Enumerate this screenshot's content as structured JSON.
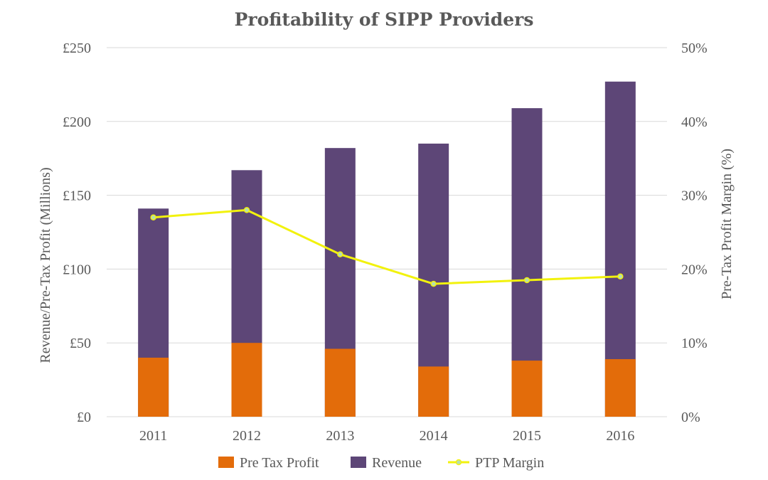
{
  "chart_data": {
    "type": "bar",
    "stacking": "overlay",
    "title": "Profitability of SIPP Providers",
    "categories": [
      "2011",
      "2012",
      "2013",
      "2014",
      "2015",
      "2016"
    ],
    "series": [
      {
        "name": "Revenue",
        "kind": "bar",
        "axis": "left",
        "color": "#5d4677",
        "values": [
          141,
          167,
          182,
          185,
          209,
          227
        ]
      },
      {
        "name": "Pre Tax Profit",
        "kind": "bar",
        "axis": "left",
        "color": "#e36c0a",
        "values": [
          40,
          50,
          46,
          34,
          38,
          39
        ]
      },
      {
        "name": "PTP Margin",
        "kind": "line",
        "axis": "right",
        "color": "#f2f20d",
        "marker_color": "#b7e0ae",
        "values": [
          27,
          28,
          22,
          18,
          18.5,
          19
        ]
      }
    ],
    "legend_order": [
      "Pre Tax Profit",
      "Revenue",
      "PTP Margin"
    ],
    "ylabel": "Revenue/Pre-Tax Profit (Millions)",
    "y2label": "Pre-Tax Profit Margin (%)",
    "ylim": [
      0,
      250
    ],
    "y2lim": [
      0,
      50
    ],
    "yticks": [
      "£0",
      "£50",
      "£100",
      "£150",
      "£200",
      "£250"
    ],
    "y2ticks": [
      "0%",
      "10%",
      "20%",
      "30%",
      "40%",
      "50%"
    ],
    "grid": true,
    "legend_position": "bottom"
  }
}
